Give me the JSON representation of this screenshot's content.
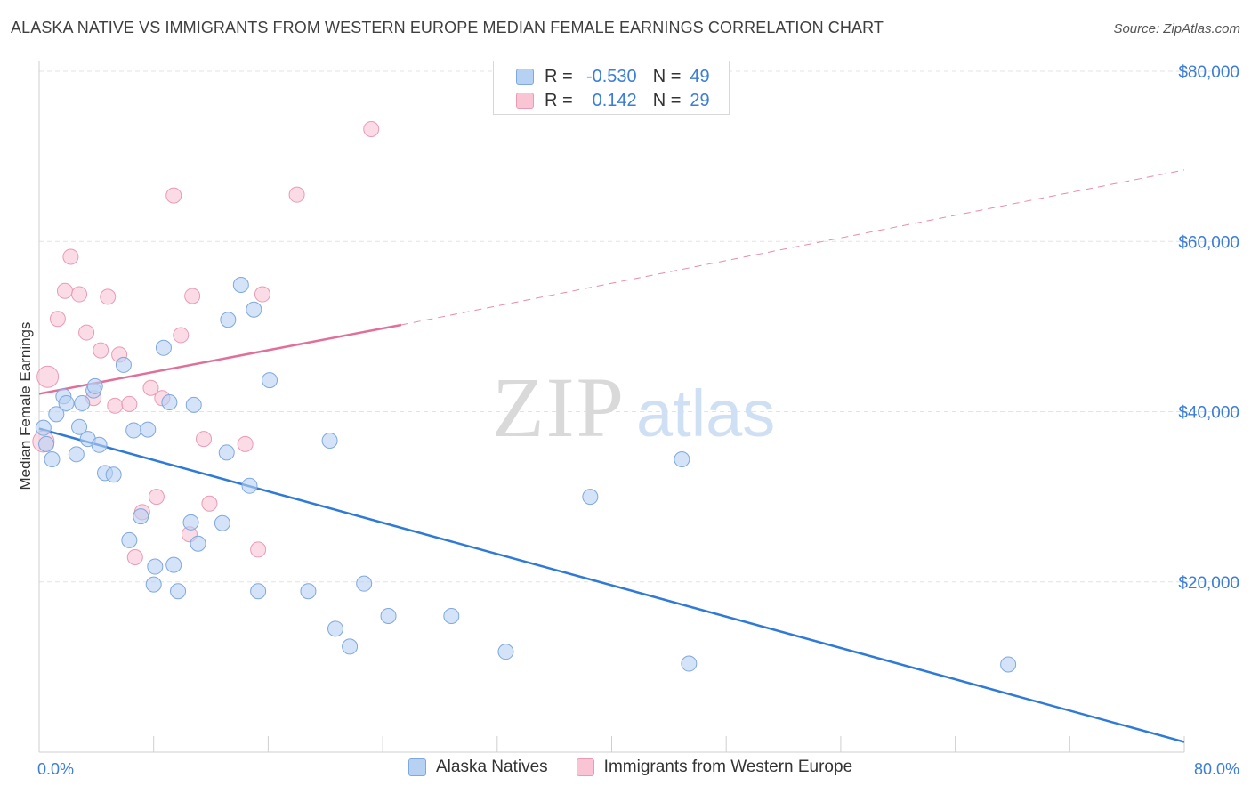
{
  "title": "ALASKA NATIVE VS IMMIGRANTS FROM WESTERN EUROPE MEDIAN FEMALE EARNINGS CORRELATION CHART",
  "source": "Source: ZipAtlas.com",
  "watermark": {
    "zip": "ZIP",
    "atlas": "atlas"
  },
  "legend": {
    "r_label": "R =",
    "n_label": "N =",
    "series": [
      {
        "name": "Alaska Natives",
        "r": "-0.530",
        "n": "49"
      },
      {
        "name": "Immigrants from Western Europe",
        "r": "0.142",
        "n": "29"
      }
    ]
  },
  "colors": {
    "blue_fill": "#b7d1f2",
    "blue_stroke": "#7ea8e0",
    "blue_line": "#2f7ad6",
    "pink_fill": "#f9c5d5",
    "pink_stroke": "#eb9ab3",
    "pink_line": "#e0709a",
    "axis_text": "#3b7dd8",
    "grid": "#e3e3e3"
  },
  "chart_data": {
    "type": "scatter",
    "title": "ALASKA NATIVE VS IMMIGRANTS FROM WESTERN EUROPE MEDIAN FEMALE EARNINGS CORRELATION CHART",
    "xlabel": "",
    "ylabel": "Median Female Earnings",
    "xlim": [
      0,
      80
    ],
    "ylim": [
      0,
      80000
    ],
    "x_tick_labels": {
      "min": "0.0%",
      "max": "80.0%"
    },
    "y_ticks": [
      20000,
      40000,
      60000,
      80000
    ],
    "y_tick_labels": [
      "$20,000",
      "$40,000",
      "$60,000",
      "$80,000"
    ],
    "series": [
      {
        "name": "Alaska Natives",
        "color": "blue",
        "trend": {
          "x0": 0,
          "y0": 38000,
          "x1": 80,
          "y1": 1200
        },
        "points": [
          [
            0.3,
            38100
          ],
          [
            0.5,
            36200
          ],
          [
            0.9,
            34400
          ],
          [
            1.2,
            39700
          ],
          [
            1.7,
            41800
          ],
          [
            1.9,
            41000
          ],
          [
            2.6,
            35000
          ],
          [
            2.8,
            38200
          ],
          [
            3.0,
            41000
          ],
          [
            3.4,
            36800
          ],
          [
            3.8,
            42500
          ],
          [
            3.9,
            43000
          ],
          [
            4.2,
            36100
          ],
          [
            4.6,
            32800
          ],
          [
            5.2,
            32600
          ],
          [
            5.9,
            45500
          ],
          [
            6.3,
            24900
          ],
          [
            6.6,
            37800
          ],
          [
            7.1,
            27700
          ],
          [
            7.6,
            37900
          ],
          [
            8.0,
            19700
          ],
          [
            8.1,
            21800
          ],
          [
            8.7,
            47500
          ],
          [
            9.1,
            41100
          ],
          [
            9.4,
            22000
          ],
          [
            9.7,
            18900
          ],
          [
            10.6,
            27000
          ],
          [
            10.8,
            40800
          ],
          [
            11.1,
            24500
          ],
          [
            12.8,
            26900
          ],
          [
            13.1,
            35200
          ],
          [
            13.2,
            50800
          ],
          [
            14.1,
            54900
          ],
          [
            14.7,
            31300
          ],
          [
            15.0,
            52000
          ],
          [
            15.3,
            18900
          ],
          [
            16.1,
            43700
          ],
          [
            18.8,
            18900
          ],
          [
            20.3,
            36600
          ],
          [
            20.7,
            14500
          ],
          [
            21.7,
            12400
          ],
          [
            22.7,
            19800
          ],
          [
            24.4,
            16000
          ],
          [
            28.8,
            16000
          ],
          [
            32.6,
            11800
          ],
          [
            38.5,
            30000
          ],
          [
            44.9,
            34400
          ],
          [
            45.4,
            10400
          ],
          [
            67.7,
            10300
          ]
        ]
      },
      {
        "name": "Immigrants from Western Europe",
        "color": "pink",
        "trend": {
          "x0": 0,
          "y0": 42100,
          "x1": 25.3,
          "y1": 50200,
          "x_ext_end": 80,
          "y_ext_end": 68400
        },
        "points": [
          [
            0.3,
            36500
          ],
          [
            0.6,
            44100
          ],
          [
            1.3,
            50900
          ],
          [
            1.8,
            54200
          ],
          [
            2.2,
            58200
          ],
          [
            2.8,
            53800
          ],
          [
            3.3,
            49300
          ],
          [
            3.8,
            41600
          ],
          [
            4.3,
            47200
          ],
          [
            4.8,
            53500
          ],
          [
            5.3,
            40700
          ],
          [
            5.6,
            46700
          ],
          [
            6.3,
            40900
          ],
          [
            6.7,
            22900
          ],
          [
            7.2,
            28200
          ],
          [
            7.8,
            42800
          ],
          [
            8.2,
            30000
          ],
          [
            8.6,
            41600
          ],
          [
            9.4,
            65400
          ],
          [
            9.9,
            49000
          ],
          [
            10.5,
            25600
          ],
          [
            10.7,
            53600
          ],
          [
            11.5,
            36800
          ],
          [
            11.9,
            29200
          ],
          [
            14.4,
            36200
          ],
          [
            15.3,
            23800
          ],
          [
            15.6,
            53800
          ],
          [
            18.0,
            65500
          ],
          [
            23.2,
            73200
          ]
        ]
      }
    ]
  }
}
